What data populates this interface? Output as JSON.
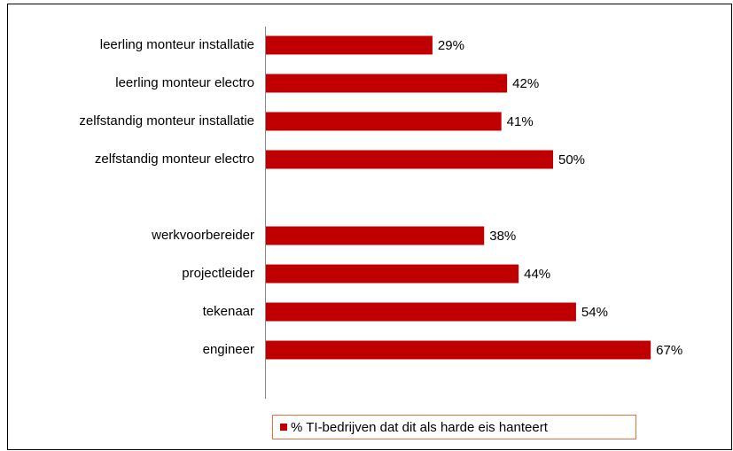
{
  "chart_data": {
    "type": "bar",
    "orientation": "horizontal",
    "categories": [
      "leerling monteur installatie",
      "leerling monteur electro",
      "zelfstandig monteur installatie",
      "zelfstandig monteur electro",
      null,
      "werkvoorbereider",
      "projectleider",
      "tekenaar",
      "engineer"
    ],
    "series": [
      {
        "name": "% TI-bedrijven dat dit als harde eis hanteert",
        "color": "#c00000",
        "values": [
          29,
          42,
          41,
          50,
          null,
          38,
          44,
          54,
          67
        ],
        "value_labels": [
          "29%",
          "42%",
          "41%",
          "50%",
          null,
          "38%",
          "44%",
          "54%",
          "67%"
        ]
      }
    ],
    "legend": "bottom"
  }
}
